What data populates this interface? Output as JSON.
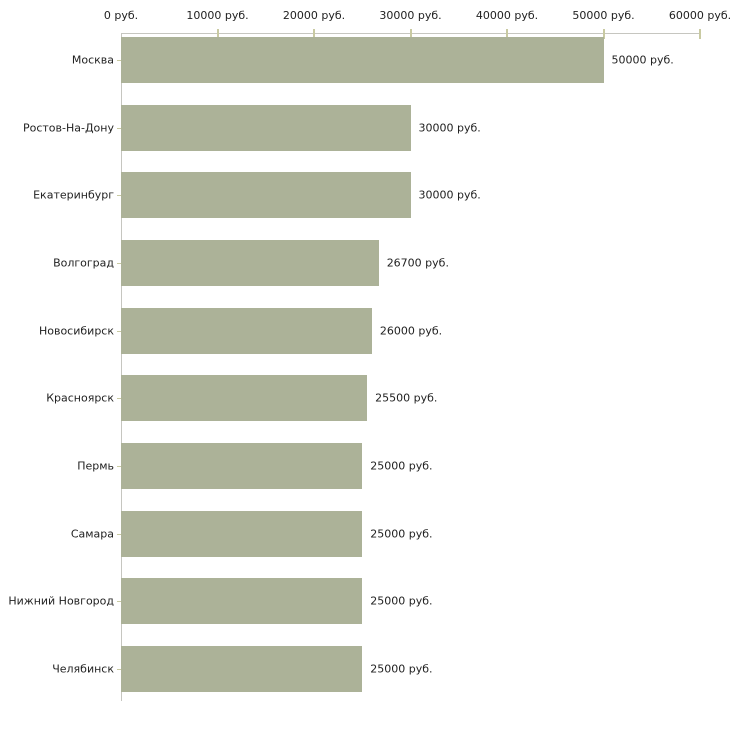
{
  "chart_data": {
    "type": "bar",
    "orientation": "horizontal",
    "title": "",
    "xlabel": "",
    "ylabel": "",
    "unit": "руб.",
    "categories": [
      "Москва",
      "Ростов-На-Дону",
      "Екатеринбург",
      "Волгоград",
      "Новосибирск",
      "Красноярск",
      "Пермь",
      "Самара",
      "Нижний Новгород",
      "Челябинск"
    ],
    "values": [
      50000,
      30000,
      30000,
      26700,
      26000,
      25500,
      25000,
      25000,
      25000,
      25000
    ],
    "value_labels": [
      "50000 руб.",
      "30000 руб.",
      "30000 руб.",
      "26700 руб.",
      "26000 руб.",
      "25500 руб.",
      "25000 руб.",
      "25000 руб.",
      "25000 руб.",
      "25000 руб."
    ],
    "x_tick_labels": [
      "0 руб.",
      "10000 руб.",
      "20000 руб.",
      "30000 руб.",
      "40000 руб.",
      "50000 руб.",
      "60000 руб."
    ],
    "xlim": [
      0,
      60000
    ],
    "grid": false,
    "legend": false,
    "colors": {
      "bar": "#acb298",
      "axis_line": "#c6c6c0",
      "tick_mark": "#c9caa2",
      "text": "#222222",
      "background": "#ffffff"
    }
  }
}
